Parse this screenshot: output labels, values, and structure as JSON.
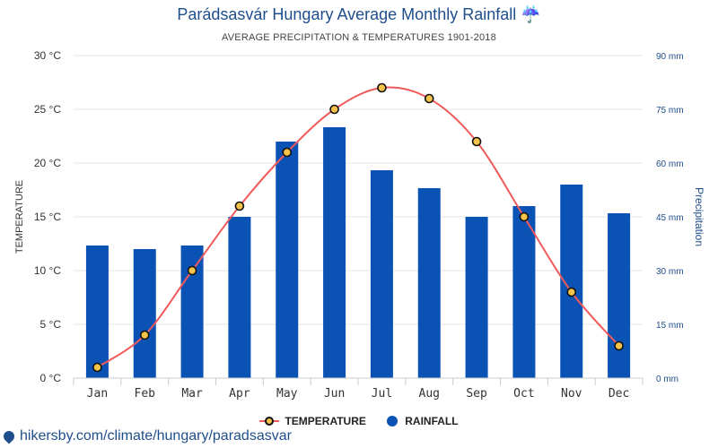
{
  "header": {
    "title": "Parádsasvár Hungary Average Monthly Rainfall ☔",
    "subtitle": "AVERAGE PRECIPITATION & TEMPERATURES 1901-2018"
  },
  "legend": {
    "temperature_label": "TEMPERATURE",
    "rainfall_label": "RAINFALL"
  },
  "footer": {
    "source_text": "hikersby.com/climate/hungary/paradsasvar",
    "source_icon": "location-pin-icon"
  },
  "colors": {
    "temperature_line": "#f05a5a",
    "temperature_marker": "#f5c24a",
    "rainfall_bar": "#0b52b5",
    "title": "#1f4e8c",
    "right_axis": "#1f4e8c"
  },
  "chart_data": {
    "type": "bar",
    "categories": [
      "Jan",
      "Feb",
      "Mar",
      "Apr",
      "May",
      "Jun",
      "Jul",
      "Aug",
      "Sep",
      "Oct",
      "Nov",
      "Dec"
    ],
    "series": [
      {
        "name": "RAINFALL",
        "type": "bar",
        "axis": "right",
        "values": [
          37,
          36,
          37,
          45,
          66,
          70,
          58,
          53,
          45,
          48,
          54,
          46
        ]
      },
      {
        "name": "TEMPERATURE",
        "type": "line",
        "axis": "left",
        "values": [
          1,
          4,
          10,
          16,
          21,
          25,
          27,
          26,
          22,
          15,
          8,
          3
        ]
      }
    ],
    "ylabel": "TEMPERATURE",
    "y2label": "Precipitation",
    "ylim": [
      0,
      30
    ],
    "y2lim": [
      0,
      90
    ],
    "yticks": [
      "0 °C",
      "5 °C",
      "10 °C",
      "15 °C",
      "20 °C",
      "25 °C",
      "30 °C"
    ],
    "y2ticks": [
      "0 mm",
      "15 mm",
      "30 mm",
      "45 mm",
      "60 mm",
      "75 mm",
      "90 mm"
    ],
    "grid": true,
    "legend_position": "bottom"
  }
}
